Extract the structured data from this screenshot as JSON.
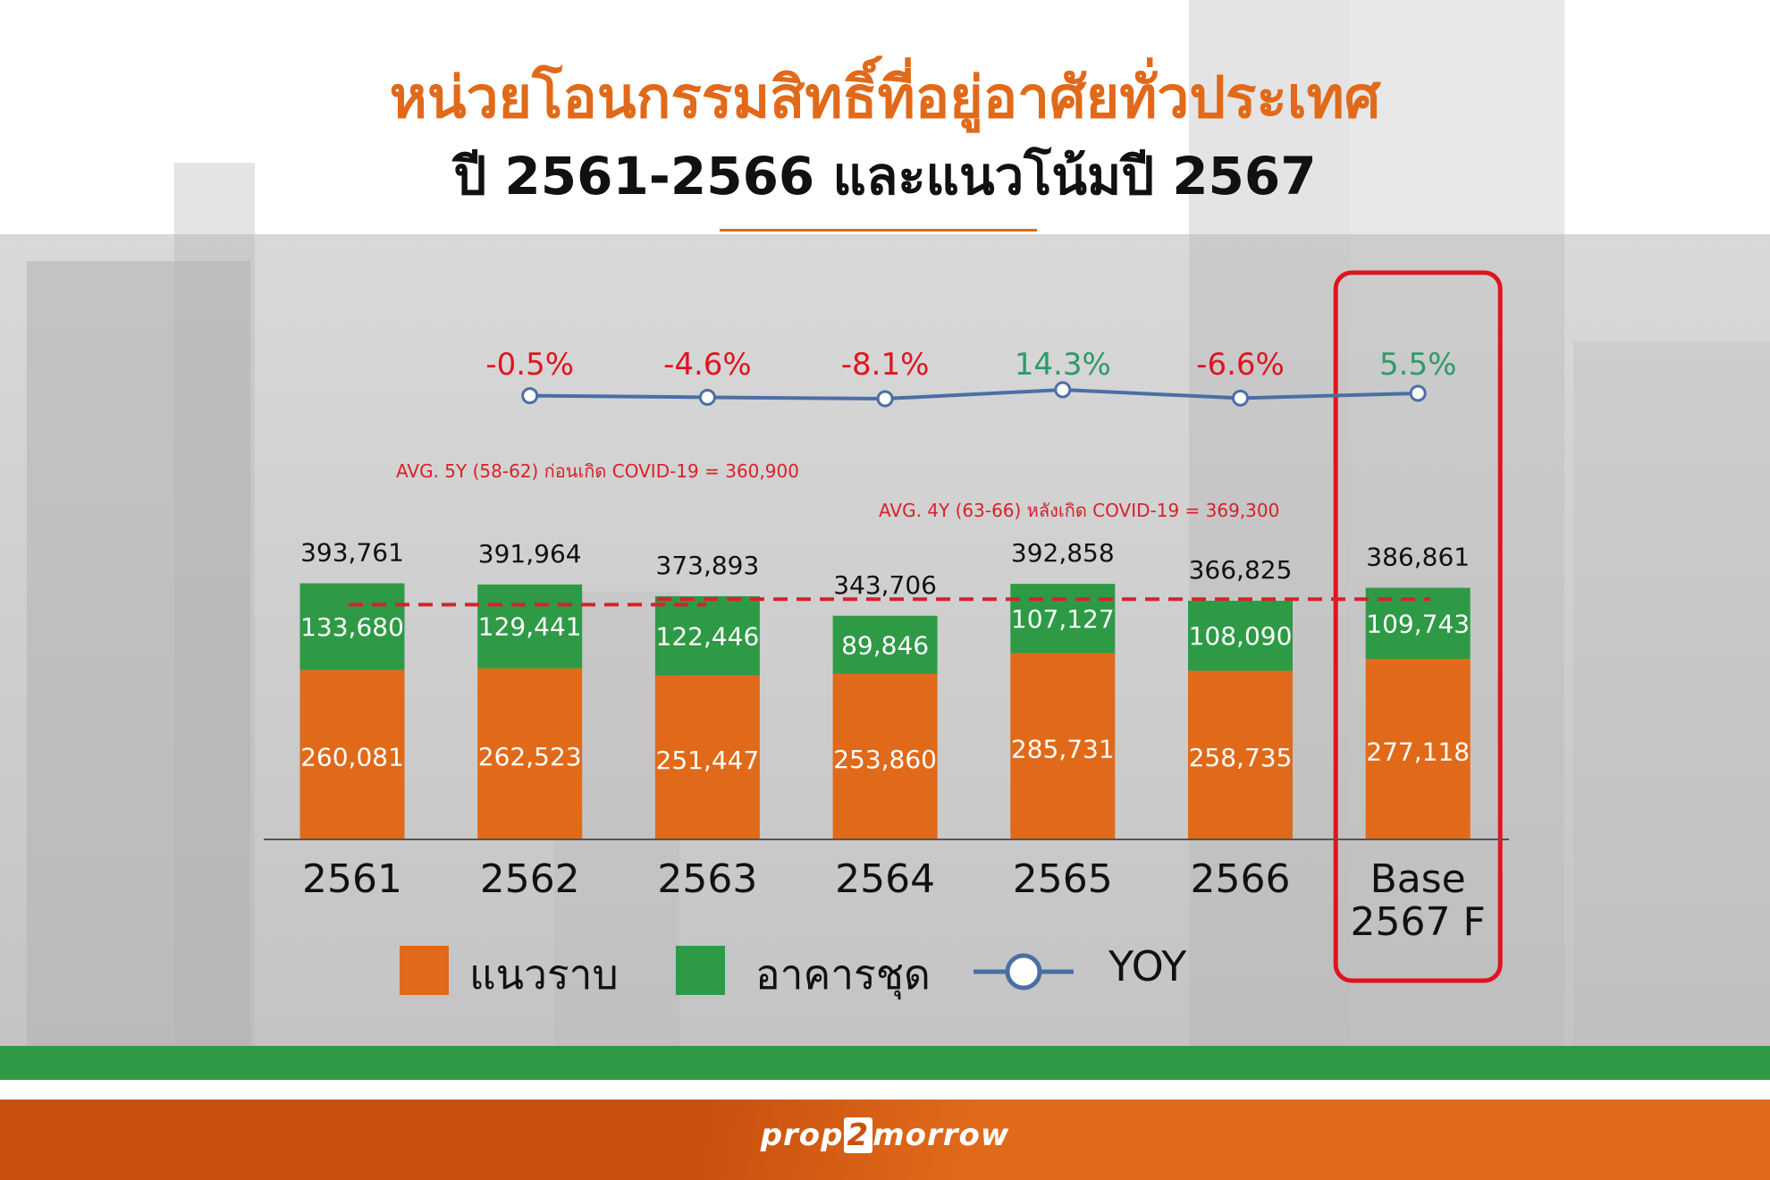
{
  "header": {
    "title": "หน่วยโอนกรรมสิทธิ์ที่อยู่อาศัยทั่วประเทศ",
    "subtitle": "ปี 2561-2566 และแนวโน้มปี 2567"
  },
  "colors": {
    "orange": "#e06a1a",
    "green": "#2e9a46",
    "yoy_line": "#4a6fa5",
    "negative": "#e0141e",
    "positive": "#2e9a6a",
    "highlight_box": "#e0141e",
    "avg_line": "#d9202a"
  },
  "chart_data": {
    "type": "bar",
    "stacked": true,
    "categories": [
      "2561",
      "2562",
      "2563",
      "2564",
      "2565",
      "2566",
      "Base\n2567 F"
    ],
    "series": [
      {
        "name": "แนวราบ",
        "color": "#e06a1a",
        "values": [
          260081,
          262523,
          251447,
          253860,
          285731,
          258735,
          277118
        ]
      },
      {
        "name": "อาคารชุด",
        "color": "#2e9a46",
        "values": [
          133680,
          129441,
          122446,
          89846,
          107127,
          108090,
          109743
        ]
      }
    ],
    "totals": [
      393761,
      391964,
      373893,
      343706,
      392858,
      366825,
      386861
    ],
    "yoy": {
      "name": "YOY",
      "labels": [
        null,
        "-0.5%",
        "-4.6%",
        "-8.1%",
        "14.3%",
        "-6.6%",
        "5.5%"
      ],
      "values": [
        null,
        -0.5,
        -4.6,
        -8.1,
        14.3,
        -6.6,
        5.5
      ]
    },
    "reference_lines": [
      {
        "label": "AVG. 5Y (58-62) ก่อนเกิด COVID-19 = 360,900",
        "value": 360900
      },
      {
        "label": "AVG. 4Y (63-66) หลังเกิด COVID-19 = 369,300",
        "value": 369300
      }
    ],
    "highlighted_category": "Base\n2567 F",
    "ylim": [
      0,
      400000
    ],
    "grid": false,
    "legend_position": "bottom-left"
  },
  "legend": {
    "items": [
      {
        "label": "แนวราบ",
        "icon": "orange-square"
      },
      {
        "label": "อาคารชุด",
        "icon": "green-square"
      },
      {
        "label": "YOY",
        "icon": "line-with-circle-marker"
      }
    ]
  },
  "footer": {
    "brand_left": "prop",
    "brand_mid": "2",
    "brand_right": "morrow"
  }
}
